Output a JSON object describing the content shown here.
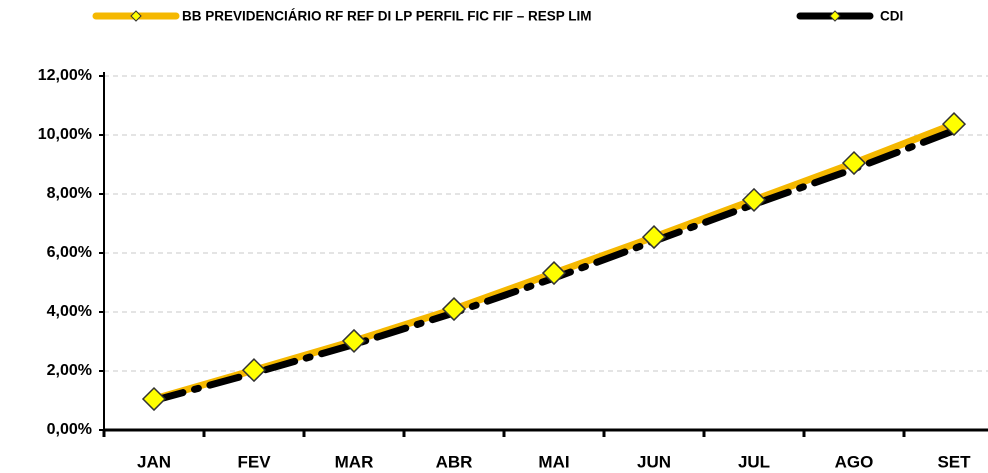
{
  "chart_data": {
    "type": "line",
    "categories": [
      "JAN",
      "FEV",
      "MAR",
      "ABR",
      "MAI",
      "JUN",
      "JUL",
      "AGO",
      "SET"
    ],
    "series": [
      {
        "name": "BB PREVIDENCIÁRIO RF REF DI LP PERFIL FIC FIF – RESP LIM",
        "color": "#f5b800",
        "marker_color": "#ffff00",
        "values": [
          1.05,
          2.03,
          3.02,
          4.1,
          5.32,
          6.54,
          7.8,
          9.05,
          10.37
        ]
      },
      {
        "name": "CDI",
        "color": "#000000",
        "marker_color": "#ffff00",
        "values": [
          1.0,
          1.93,
          2.9,
          3.97,
          5.15,
          6.4,
          7.65,
          8.85,
          10.15
        ]
      }
    ],
    "ylim": [
      0,
      12
    ],
    "yticks": [
      {
        "value": 0,
        "label": "0,00%"
      },
      {
        "value": 2,
        "label": "2,00%"
      },
      {
        "value": 4,
        "label": "4,00%"
      },
      {
        "value": 6,
        "label": "6,00%"
      },
      {
        "value": 8,
        "label": "8,00%"
      },
      {
        "value": 10,
        "label": "10,00%"
      },
      {
        "value": 12,
        "label": "12,00%"
      }
    ],
    "grid": true,
    "legend": "top"
  }
}
